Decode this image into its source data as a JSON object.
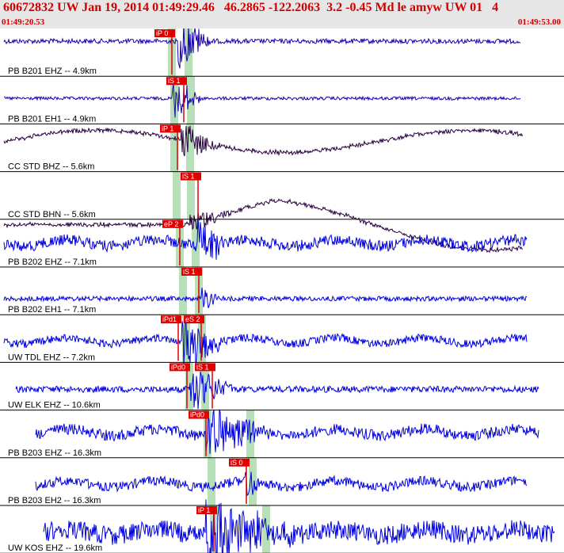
{
  "header": {
    "title": "60672832 UW Jan 19, 2014 01:49:29.46   46.2865 -122.2063  3.2 -0.45 Md le amyw UW 01   4",
    "time_start": "01:49:20.53",
    "time_end": "01:49:53.00"
  },
  "colors": {
    "header_text": "#d40000",
    "trace_blue": "#0000dd",
    "trace_dark": "#2a0040",
    "pick_red": "#e00000",
    "pick_window_green": "#b8e0b8"
  },
  "traces": [
    {
      "label": "PB B201 EHZ -- 4.9km",
      "color": "dark_blue",
      "picks": [
        {
          "text": "iP 0"
        }
      ]
    },
    {
      "label": "PB B201 EH1 -- 4.9km",
      "color": "dark_blue",
      "picks": [
        {
          "text": "iS 1"
        }
      ]
    },
    {
      "label": "CC STD BHZ -- 5.6km",
      "color": "dark_purple",
      "picks": [
        {
          "text": "iP 1"
        }
      ]
    },
    {
      "label": "CC STD BHN -- 5.6km",
      "color": "dark_purple",
      "picks": [
        {
          "text": "iS 1"
        }
      ]
    },
    {
      "label": "PB B202 EHZ -- 7.1km",
      "color": "blue",
      "picks": [
        {
          "text": "eP 2"
        }
      ]
    },
    {
      "label": "PB B202 EH1 -- 7.1km",
      "color": "blue",
      "picks": [
        {
          "text": "iS 1"
        }
      ]
    },
    {
      "label": "UW TDL EHZ -- 7.2km",
      "color": "blue",
      "picks": [
        {
          "text": "iPd1"
        },
        {
          "text": "eS 2"
        }
      ]
    },
    {
      "label": "UW ELK EHZ -- 10.6km",
      "color": "blue",
      "picks": [
        {
          "text": "iPd0"
        },
        {
          "text": "iS 1"
        }
      ]
    },
    {
      "label": "PB B203 EHZ -- 16.3km",
      "color": "blue",
      "picks": [
        {
          "text": "iPd0"
        }
      ]
    },
    {
      "label": "PB B203 EH2 -- 16.3km",
      "color": "blue",
      "picks": [
        {
          "text": "iS 0"
        }
      ]
    },
    {
      "label": "UW KOS EHZ -- 19.6km",
      "color": "blue",
      "picks": [
        {
          "text": "iP 1"
        }
      ]
    }
  ]
}
